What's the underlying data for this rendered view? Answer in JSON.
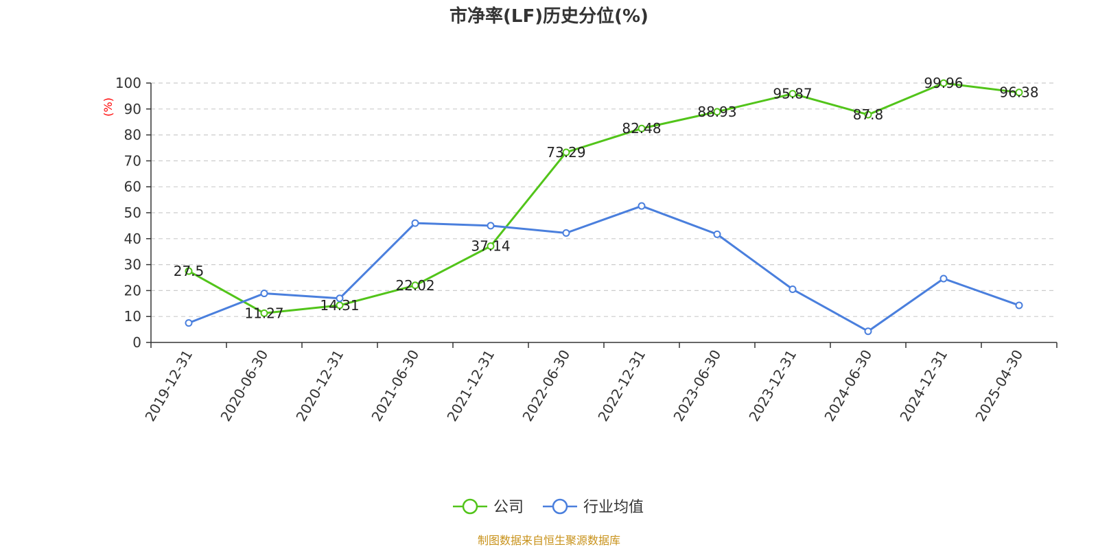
{
  "chart_data": {
    "type": "line",
    "title": "市净率(LF)历史分位(%)",
    "ylabel": "(%)",
    "xlabel": "",
    "ylim": [
      0,
      100
    ],
    "yticks": [
      0,
      10,
      20,
      30,
      40,
      50,
      60,
      70,
      80,
      90,
      100
    ],
    "grid": true,
    "legend_position": "bottom-center",
    "categories": [
      "2019-12-31",
      "2020-06-30",
      "2020-12-31",
      "2021-06-30",
      "2021-12-31",
      "2022-06-30",
      "2022-12-31",
      "2023-06-30",
      "2023-12-31",
      "2024-06-30",
      "2024-12-31",
      "2025-04-30"
    ],
    "series": [
      {
        "name": "公司",
        "color": "#52c41a",
        "values": [
          27.5,
          11.27,
          14.31,
          22.02,
          37.14,
          73.29,
          82.48,
          88.93,
          95.87,
          87.8,
          99.96,
          96.38
        ],
        "labels": [
          "27.5",
          "11.27",
          "14.31",
          "22.02",
          "37.14",
          "73.29",
          "82.48",
          "88.93",
          "95.87",
          "87.8",
          "99.96",
          "96.38"
        ]
      },
      {
        "name": "行业均值",
        "color": "#4a7fdd",
        "values": [
          7.5,
          18.9,
          17.0,
          46.0,
          45.0,
          42.2,
          52.6,
          41.7,
          20.5,
          4.3,
          24.6,
          14.3
        ]
      }
    ],
    "footer": "制图数据来自恒生聚源数据库",
    "footer_color": "#c8921a"
  }
}
